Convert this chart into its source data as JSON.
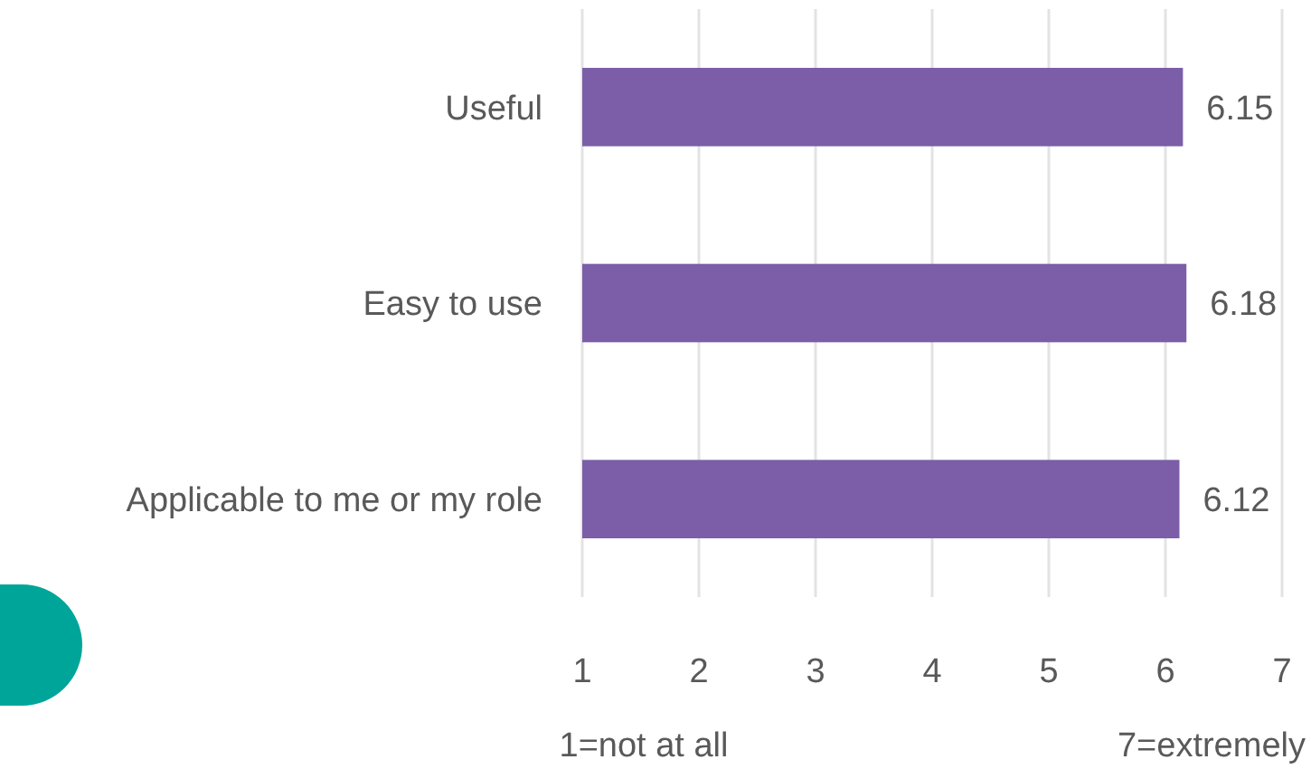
{
  "chart_data": {
    "type": "bar",
    "orientation": "horizontal",
    "categories": [
      "Useful",
      "Easy to use",
      "Applicable to me or my role"
    ],
    "values": [
      6.15,
      6.18,
      6.12
    ],
    "color": "#7b5ea7",
    "xlim": [
      1,
      7
    ],
    "xticks": [
      1,
      2,
      3,
      4,
      5,
      6,
      7
    ],
    "grid": "x",
    "data_labels": true,
    "annotations": [
      "1=not at all",
      "7=extremely"
    ]
  }
}
